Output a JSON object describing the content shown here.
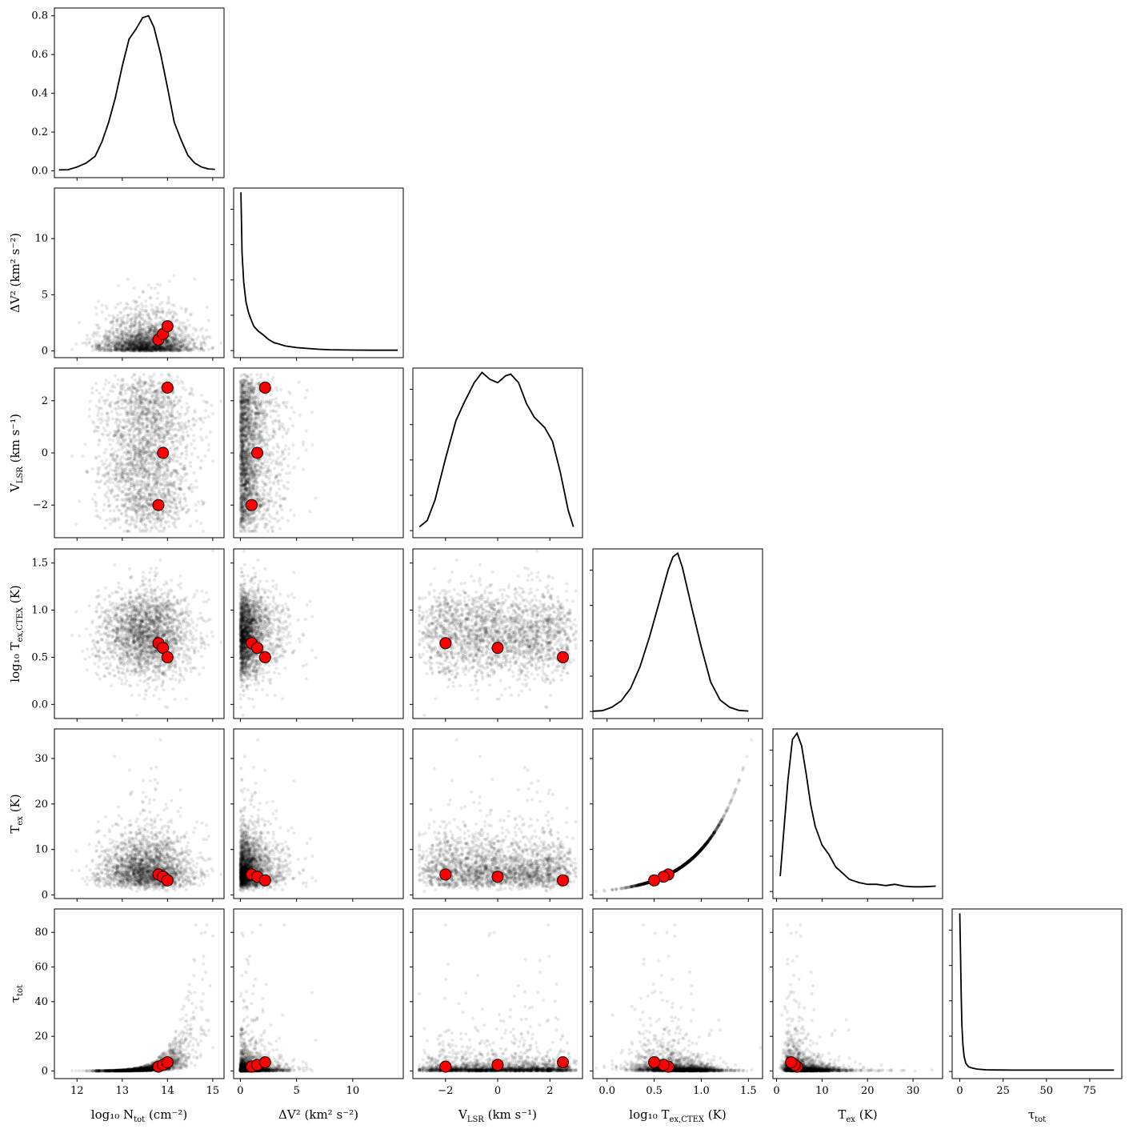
{
  "chart_data": {
    "type": "scatter",
    "layout": "corner-plot",
    "parameters": [
      {
        "key": "log10_N_tot",
        "label_main": "log₁₀ N",
        "label_sub": "tot",
        "label_unit": " (cm⁻²)",
        "range": [
          11.5,
          15.25
        ],
        "ticks": [
          12,
          13,
          14,
          15
        ],
        "tick_labels": [
          "12",
          "13",
          "14",
          "15"
        ],
        "truths": [
          13.8,
          13.9,
          14.0
        ]
      },
      {
        "key": "dV2",
        "label_main": "ΔV²",
        "label_sub": "",
        "label_unit": " (km² s⁻²)",
        "range": [
          -0.6,
          14.5
        ],
        "ticks": [
          0,
          5,
          10
        ],
        "tick_labels": [
          "0",
          "5",
          "10"
        ],
        "truths": [
          1.0,
          1.5,
          2.2
        ]
      },
      {
        "key": "V_LSR",
        "label_main": "V",
        "label_sub": "LSR",
        "label_unit": " (km s⁻¹)",
        "range": [
          -3.25,
          3.25
        ],
        "ticks": [
          -2,
          0,
          2
        ],
        "tick_labels": [
          "−2",
          "0",
          "2"
        ],
        "truths": [
          -2.0,
          0.0,
          2.5
        ]
      },
      {
        "key": "log10_Tex_CTEX",
        "label_main": "log₁₀ T",
        "label_sub": "ex,CTEX",
        "label_unit": " (K)",
        "range": [
          -0.15,
          1.65
        ],
        "ticks": [
          0.0,
          0.5,
          1.0,
          1.5
        ],
        "tick_labels": [
          "0.0",
          "0.5",
          "1.0",
          "1.5"
        ],
        "truths": [
          0.65,
          0.6,
          0.5
        ]
      },
      {
        "key": "Tex",
        "label_main": "T",
        "label_sub": "ex",
        "label_unit": " (K)",
        "range": [
          -0.8,
          36.5
        ],
        "ticks": [
          0,
          10,
          20,
          30
        ],
        "tick_labels": [
          "0",
          "10",
          "20",
          "30"
        ],
        "truths": [
          4.5,
          4.0,
          3.2
        ]
      },
      {
        "key": "tau_tot",
        "label_main": "τ",
        "label_sub": "tot",
        "label_unit": "",
        "range": [
          -4.4,
          93.5
        ],
        "ticks": [
          0,
          20,
          40,
          60,
          80
        ],
        "tick_labels": [
          "0",
          "20",
          "40",
          "60",
          "80"
        ],
        "truths": [
          2.5,
          3.5,
          5.0
        ]
      }
    ],
    "diagonal_ticks": {
      "0": {
        "ticks": [
          0.0,
          0.2,
          0.4,
          0.6,
          0.8
        ],
        "tick_labels": [
          "0.0",
          "0.2",
          "0.4",
          "0.6",
          "0.8"
        ],
        "ylim": [
          -0.035,
          0.84
        ]
      },
      "5": {
        "ticks": [
          0,
          25,
          50,
          75
        ],
        "tick_labels": [
          "0",
          "25",
          "50",
          "75"
        ],
        "xlim": [
          -4.4,
          93.5
        ]
      }
    },
    "density_curves": {
      "log10_N_tot": {
        "x": [
          11.6,
          11.8,
          12.0,
          12.2,
          12.4,
          12.55,
          12.7,
          12.85,
          13.0,
          13.15,
          13.3,
          13.45,
          13.58,
          13.7,
          13.85,
          14.0,
          14.15,
          14.3,
          14.45,
          14.6,
          14.75,
          14.9,
          15.05
        ],
        "y": [
          0.005,
          0.006,
          0.02,
          0.04,
          0.075,
          0.15,
          0.25,
          0.38,
          0.54,
          0.68,
          0.73,
          0.79,
          0.8,
          0.74,
          0.6,
          0.43,
          0.25,
          0.16,
          0.08,
          0.04,
          0.02,
          0.01,
          0.008
        ]
      },
      "dV2": {
        "x": [
          0.05,
          0.15,
          0.3,
          0.5,
          0.7,
          0.9,
          1.2,
          1.6,
          2.0,
          2.5,
          3.0,
          3.5,
          4.0,
          5.0,
          6.0,
          7.0,
          8.0,
          10.0,
          12.0,
          14.0
        ],
        "y": [
          0.97,
          0.6,
          0.42,
          0.3,
          0.24,
          0.2,
          0.15,
          0.12,
          0.1,
          0.07,
          0.05,
          0.04,
          0.03,
          0.02,
          0.015,
          0.01,
          0.007,
          0.005,
          0.004,
          0.004
        ]
      },
      "V_LSR": {
        "x": [
          -3.0,
          -2.7,
          -2.4,
          -2.0,
          -1.6,
          -1.3,
          -0.9,
          -0.6,
          -0.3,
          0.0,
          0.3,
          0.5,
          0.8,
          1.1,
          1.4,
          1.8,
          2.1,
          2.4,
          2.7,
          2.9
        ],
        "y": [
          0.012,
          0.03,
          0.09,
          0.21,
          0.32,
          0.37,
          0.43,
          0.46,
          0.44,
          0.43,
          0.45,
          0.455,
          0.43,
          0.37,
          0.33,
          0.3,
          0.26,
          0.17,
          0.06,
          0.012
        ]
      },
      "log10_Tex_CTEX": {
        "x": [
          -0.15,
          -0.05,
          0.05,
          0.15,
          0.25,
          0.35,
          0.45,
          0.55,
          0.65,
          0.7,
          0.75,
          0.8,
          0.9,
          1.0,
          1.1,
          1.2,
          1.3,
          1.4,
          1.5
        ],
        "y": [
          0.006,
          0.012,
          0.05,
          0.12,
          0.26,
          0.5,
          0.83,
          1.2,
          1.58,
          1.72,
          1.76,
          1.6,
          1.15,
          0.72,
          0.33,
          0.13,
          0.05,
          0.015,
          0.008
        ]
      },
      "Tex": {
        "x": [
          0.8,
          1.5,
          2.5,
          3.5,
          4.5,
          5.5,
          6.5,
          7.5,
          8.5,
          10.0,
          11.5,
          13.0,
          14.5,
          16.0,
          18.0,
          20.0,
          22.0,
          24.0,
          26.0,
          28.0,
          30.0,
          32.0,
          35.0
        ],
        "y": [
          0.025,
          0.09,
          0.18,
          0.245,
          0.255,
          0.235,
          0.19,
          0.14,
          0.105,
          0.075,
          0.06,
          0.04,
          0.03,
          0.02,
          0.015,
          0.012,
          0.012,
          0.01,
          0.012,
          0.009,
          0.008,
          0.008,
          0.009
        ]
      },
      "tau_tot": {
        "x": [
          0.0,
          0.4,
          0.8,
          1.2,
          1.8,
          2.5,
          3.5,
          5.0,
          7.0,
          10.0,
          15.0,
          20.0,
          30.0,
          45.0,
          60.0,
          75.0,
          89.0
        ],
        "y": [
          0.93,
          0.7,
          0.45,
          0.28,
          0.16,
          0.09,
          0.05,
          0.03,
          0.022,
          0.016,
          0.012,
          0.011,
          0.01,
          0.01,
          0.01,
          0.01,
          0.01
        ]
      }
    },
    "samples_description_colors": {
      "samples": "#000000",
      "truths": "#ff0000",
      "truth_edge": "#000000"
    }
  }
}
